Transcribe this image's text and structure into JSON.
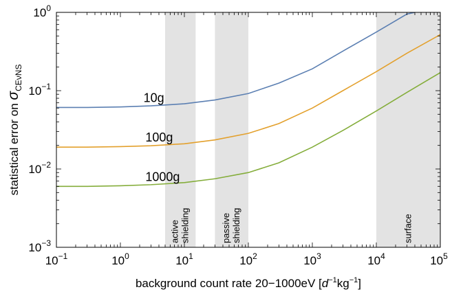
{
  "chart_data": {
    "type": "line",
    "xscale": "log",
    "yscale": "log",
    "xlim": [
      0.1,
      100000
    ],
    "ylim": [
      0.001,
      1
    ],
    "x_ticks": [
      {
        "value": 0.1,
        "base": "10",
        "exp": "−1"
      },
      {
        "value": 1,
        "base": "10",
        "exp": "0"
      },
      {
        "value": 10,
        "base": "10",
        "exp": "1"
      },
      {
        "value": 100,
        "base": "10",
        "exp": "2"
      },
      {
        "value": 1000,
        "base": "10",
        "exp": "3"
      },
      {
        "value": 10000,
        "base": "10",
        "exp": "4"
      },
      {
        "value": 100000,
        "base": "10",
        "exp": "5"
      }
    ],
    "y_ticks": [
      {
        "value": 0.001,
        "base": "10",
        "exp": "−3"
      },
      {
        "value": 0.01,
        "base": "10",
        "exp": "−2"
      },
      {
        "value": 0.1,
        "base": "10",
        "exp": "−1"
      },
      {
        "value": 1,
        "base": "10",
        "exp": "0"
      }
    ],
    "xlabel": {
      "prefix": "background count rate 20−1000eV [",
      "d": "d",
      "d_exp": "−1",
      "kg": "kg",
      "kg_exp": "−1",
      "suffix": "]"
    },
    "ylabel": {
      "prefix": "statistical error on ",
      "sigma": "σ",
      "subscript": "CEνNS"
    },
    "bands": [
      {
        "name": "active shielding",
        "lines": [
          "active",
          "shielding"
        ],
        "x0": 5,
        "x1": 15
      },
      {
        "name": "passive shielding",
        "lines": [
          "passive",
          "shielding"
        ],
        "x0": 30,
        "x1": 100
      },
      {
        "name": "surface",
        "lines": [
          "surface"
        ],
        "x0": 10000,
        "x1": 100000
      }
    ],
    "band_color": "#e3e3e3",
    "series": [
      {
        "name": "10g",
        "color": "#5b7fb2",
        "label_at": 0.7,
        "points": [
          [
            0.1,
            0.061
          ],
          [
            0.3,
            0.061
          ],
          [
            1,
            0.062
          ],
          [
            3,
            0.064
          ],
          [
            10,
            0.068
          ],
          [
            30,
            0.076
          ],
          [
            100,
            0.092
          ],
          [
            300,
            0.125
          ],
          [
            1000,
            0.19
          ],
          [
            3000,
            0.32
          ],
          [
            10000,
            0.56
          ],
          [
            30000,
            0.95
          ],
          [
            40000,
            1.0
          ]
        ]
      },
      {
        "name": "100g",
        "color": "#e3a02c",
        "label_at": 0.75,
        "points": [
          [
            0.1,
            0.019
          ],
          [
            0.3,
            0.019
          ],
          [
            1,
            0.0193
          ],
          [
            3,
            0.0198
          ],
          [
            10,
            0.021
          ],
          [
            30,
            0.0235
          ],
          [
            100,
            0.0285
          ],
          [
            300,
            0.038
          ],
          [
            1000,
            0.06
          ],
          [
            3000,
            0.1
          ],
          [
            10000,
            0.175
          ],
          [
            30000,
            0.3
          ],
          [
            100000,
            0.52
          ]
        ]
      },
      {
        "name": "1000g",
        "color": "#84ad3a",
        "label_at": 0.75,
        "points": [
          [
            0.1,
            0.006
          ],
          [
            0.3,
            0.006
          ],
          [
            1,
            0.0061
          ],
          [
            3,
            0.0063
          ],
          [
            10,
            0.0067
          ],
          [
            30,
            0.0075
          ],
          [
            100,
            0.009
          ],
          [
            300,
            0.012
          ],
          [
            1000,
            0.019
          ],
          [
            3000,
            0.031
          ],
          [
            10000,
            0.055
          ],
          [
            30000,
            0.095
          ],
          [
            100000,
            0.17
          ]
        ]
      }
    ]
  }
}
